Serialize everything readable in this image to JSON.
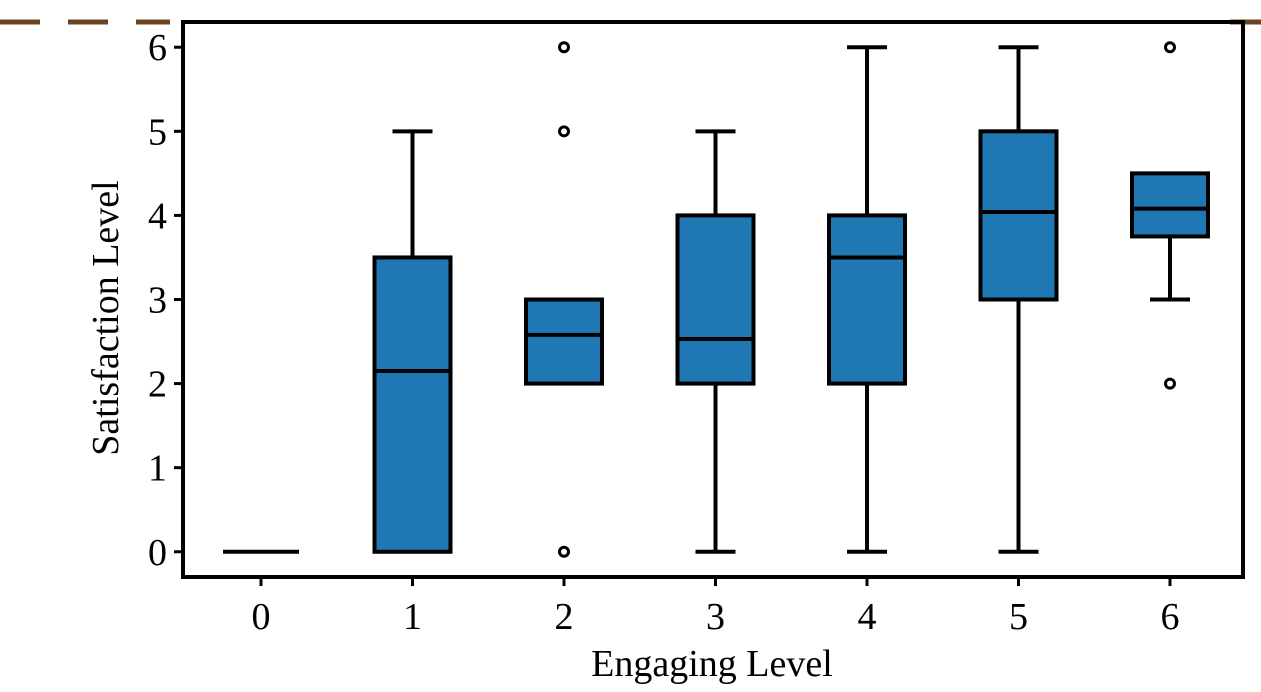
{
  "chart_data": {
    "type": "box",
    "xlabel": "Engaging Level",
    "ylabel": "Satisfaction Level",
    "categories": [
      "0",
      "1",
      "2",
      "3",
      "4",
      "5",
      "6"
    ],
    "ylim": [
      -0.3,
      6.3
    ],
    "y_ticks": [
      "0",
      "1",
      "2",
      "3",
      "4",
      "5",
      "6"
    ],
    "grid": false,
    "box_color": "#1f77b4",
    "edge_color": "#000000",
    "boxes": [
      {
        "category": "0",
        "whisker_low": 0,
        "q1": 0,
        "median": 0,
        "q3": 0,
        "whisker_high": 0,
        "outliers": []
      },
      {
        "category": "1",
        "whisker_low": 0,
        "q1": 0,
        "median": 2.15,
        "q3": 3.5,
        "whisker_high": 5,
        "outliers": []
      },
      {
        "category": "2",
        "whisker_low": 2,
        "q1": 2,
        "median": 2.58,
        "q3": 3,
        "whisker_high": 3,
        "outliers": [
          0,
          5,
          6
        ]
      },
      {
        "category": "3",
        "whisker_low": 0,
        "q1": 2,
        "median": 2.53,
        "q3": 4,
        "whisker_high": 5,
        "outliers": []
      },
      {
        "category": "4",
        "whisker_low": 0,
        "q1": 2,
        "median": 3.5,
        "q3": 4,
        "whisker_high": 6,
        "outliers": []
      },
      {
        "category": "5",
        "whisker_low": 0,
        "q1": 3,
        "median": 4.04,
        "q3": 5,
        "whisker_high": 6,
        "outliers": []
      },
      {
        "category": "6",
        "whisker_low": 3,
        "q1": 3.75,
        "median": 4.08,
        "q3": 4.5,
        "whisker_high": 4.5,
        "outliers": [
          2,
          6
        ]
      }
    ]
  }
}
